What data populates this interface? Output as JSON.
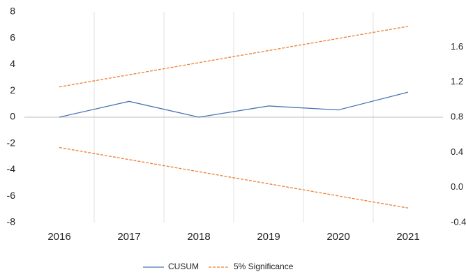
{
  "chart_data": {
    "type": "line",
    "categories": [
      "2016",
      "2017",
      "2018",
      "2019",
      "2020",
      "2021"
    ],
    "series": [
      {
        "name": "CUSUM",
        "color": "#4a74b4",
        "values": [
          0,
          1.2,
          0,
          0.85,
          0.55,
          1.9
        ]
      },
      {
        "name": "5% Significance",
        "color": "#ed7d31",
        "dashed": true,
        "values": [
          2.3,
          3.22,
          4.14,
          5.06,
          5.98,
          6.9
        ]
      },
      {
        "color": "#ed7d31",
        "dashed": true,
        "values": [
          -2.3,
          -3.22,
          -4.14,
          -5.06,
          -5.98,
          -6.9
        ]
      }
    ],
    "ylim": [
      -8,
      8
    ],
    "yticks": [
      -8,
      -6,
      -4,
      -2,
      0,
      2,
      4,
      6,
      8
    ],
    "y2lim": [
      -0.4,
      2.0
    ],
    "y2ticks": [
      {
        "value": -0.4,
        "label": "-0.4"
      },
      {
        "value": 0,
        "label": "0.0"
      },
      0.4,
      0.8,
      1.2,
      1.6
    ],
    "legend": "bottom"
  }
}
